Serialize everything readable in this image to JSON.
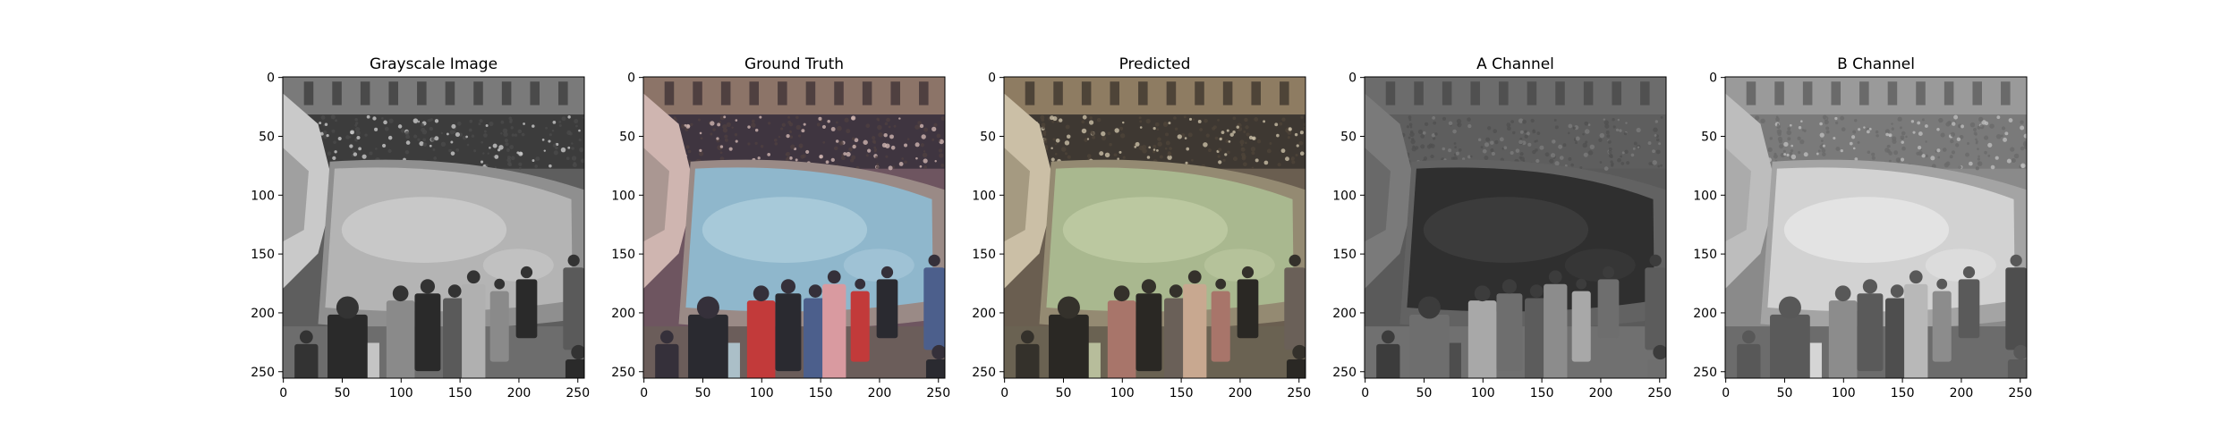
{
  "figure": {
    "panels": [
      {
        "title": "Grayscale Image",
        "palette": "gray"
      },
      {
        "title": "Ground Truth",
        "palette": "truth"
      },
      {
        "title": "Predicted",
        "palette": "pred"
      },
      {
        "title": "A Channel",
        "palette": "chanA"
      },
      {
        "title": "B Channel",
        "palette": "chanB"
      }
    ],
    "x_ticks": [
      "0",
      "50",
      "100",
      "150",
      "200",
      "250"
    ],
    "y_ticks": [
      "0",
      "50",
      "100",
      "150",
      "200",
      "250"
    ]
  }
}
